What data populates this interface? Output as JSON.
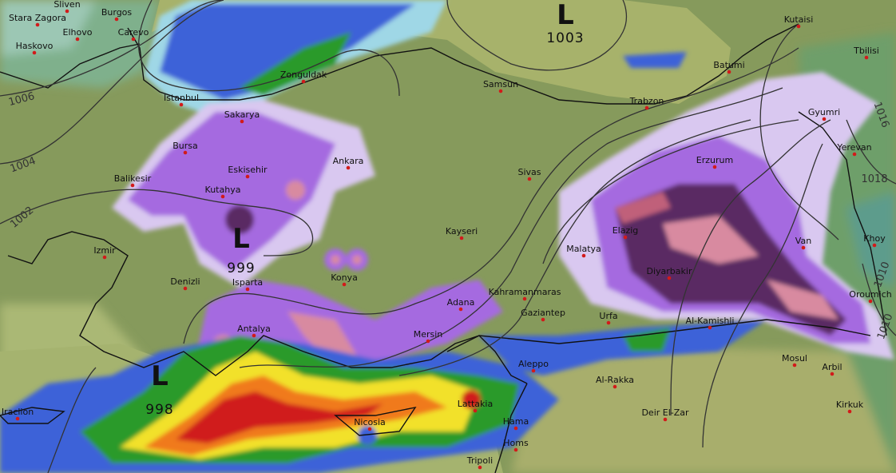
{
  "map": {
    "colors": {
      "land": "#8a9a5e",
      "lowland_green": "#6f9a5a",
      "sea": "#a9b56c",
      "snow_light": "#d9c8f0",
      "snow_mid": "#a56be0",
      "snow_heavy": "#5a2a63",
      "snow_extreme": "#d88aa0",
      "rain_light": "#9fd7e6",
      "rain_mid": "#3d62d8",
      "rain_green": "#2c9a2a",
      "rain_yellow": "#f2e12a",
      "rain_orange": "#f07a1a",
      "rain_red": "#d01f1f",
      "isobar": "#333333",
      "city_dot": "#d21a1a"
    },
    "pressure_lows": [
      {
        "letter": "L",
        "value": "1003"
      },
      {
        "letter": "L",
        "value": "999"
      },
      {
        "letter": "L",
        "value": "998"
      }
    ],
    "isobar_labels": [
      "1006",
      "1004",
      "1002",
      "1016",
      "1018",
      "1010",
      "1010"
    ],
    "cities": [
      "Sliven",
      "Stara Zagora",
      "Burgos",
      "Elhovo",
      "Carevo",
      "Haskovo",
      "Zonguldak",
      "Istanbul",
      "Samsun",
      "Trabzon",
      "Batumi",
      "Kutaisi",
      "Tbilisi",
      "Sakarya",
      "Gyumri",
      "Bursa",
      "Eskisehir",
      "Ankara",
      "Sivas",
      "Erzurum",
      "Yerevan",
      "Balikesir",
      "Kutahya",
      "Kayseri",
      "Elazig",
      "Van",
      "Khoy",
      "Izmir",
      "Malatya",
      "Denizli",
      "Isparta",
      "Konya",
      "Diyarbakir",
      "Kahramanmaras",
      "Oroumich",
      "Gaziantep",
      "Urfa",
      "Adana",
      "Mersin",
      "Antalya",
      "Al-Kamishli",
      "Aleppo",
      "Mosul",
      "Arbil",
      "Al-Rakka",
      "Iraclion",
      "Nicosia",
      "Lattakia",
      "Hama",
      "Deir El-Zar",
      "Kirkuk",
      "Homs",
      "Tripoli"
    ]
  }
}
